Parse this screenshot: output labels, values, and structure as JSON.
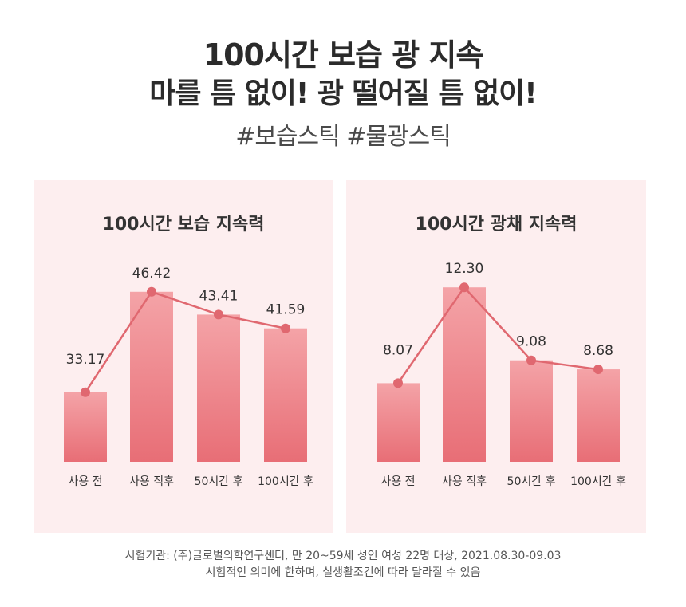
{
  "header": {
    "line1": "100시간 보습 광 지속",
    "line2": "마를 틈 없이! 광 떨어질 틈 없이!",
    "hashtags": "#보습스틱 #물광스틱"
  },
  "colors": {
    "bar_top": "#f4a3a7",
    "bar_bottom": "#e86e76",
    "line": "#e06870",
    "panel_bg": "#fdeeef"
  },
  "chart_data": [
    {
      "type": "bar",
      "title": "100시간 보습 지속력",
      "categories": [
        "사용 전",
        "사용 직후",
        "50시간 후",
        "100시간 후"
      ],
      "values": [
        33.17,
        46.42,
        43.41,
        41.59
      ],
      "value_labels": [
        "33.17",
        "46.42",
        "43.41",
        "41.59"
      ],
      "overlay": "line",
      "ylim": [
        24.0,
        48.5
      ],
      "grid": false,
      "legend": "none"
    },
    {
      "type": "bar",
      "title": "100시간 광채 지속력",
      "categories": [
        "사용 전",
        "사용 직후",
        "50시간 후",
        "100시간 후"
      ],
      "values": [
        8.07,
        12.3,
        9.08,
        8.68
      ],
      "value_labels": [
        "8.07",
        "12.30",
        "9.08",
        "8.68"
      ],
      "overlay": "line",
      "ylim": [
        4.6,
        12.8
      ],
      "grid": false,
      "legend": "none"
    }
  ],
  "footer": {
    "line1": "시험기관: (주)글로벌의학연구센터, 만 20~59세 성인 여성 22명 대상, 2021.08.30-09.03",
    "line2": "시험적인 의미에 한하며, 실생활조건에 따라 달라질 수 있음"
  }
}
